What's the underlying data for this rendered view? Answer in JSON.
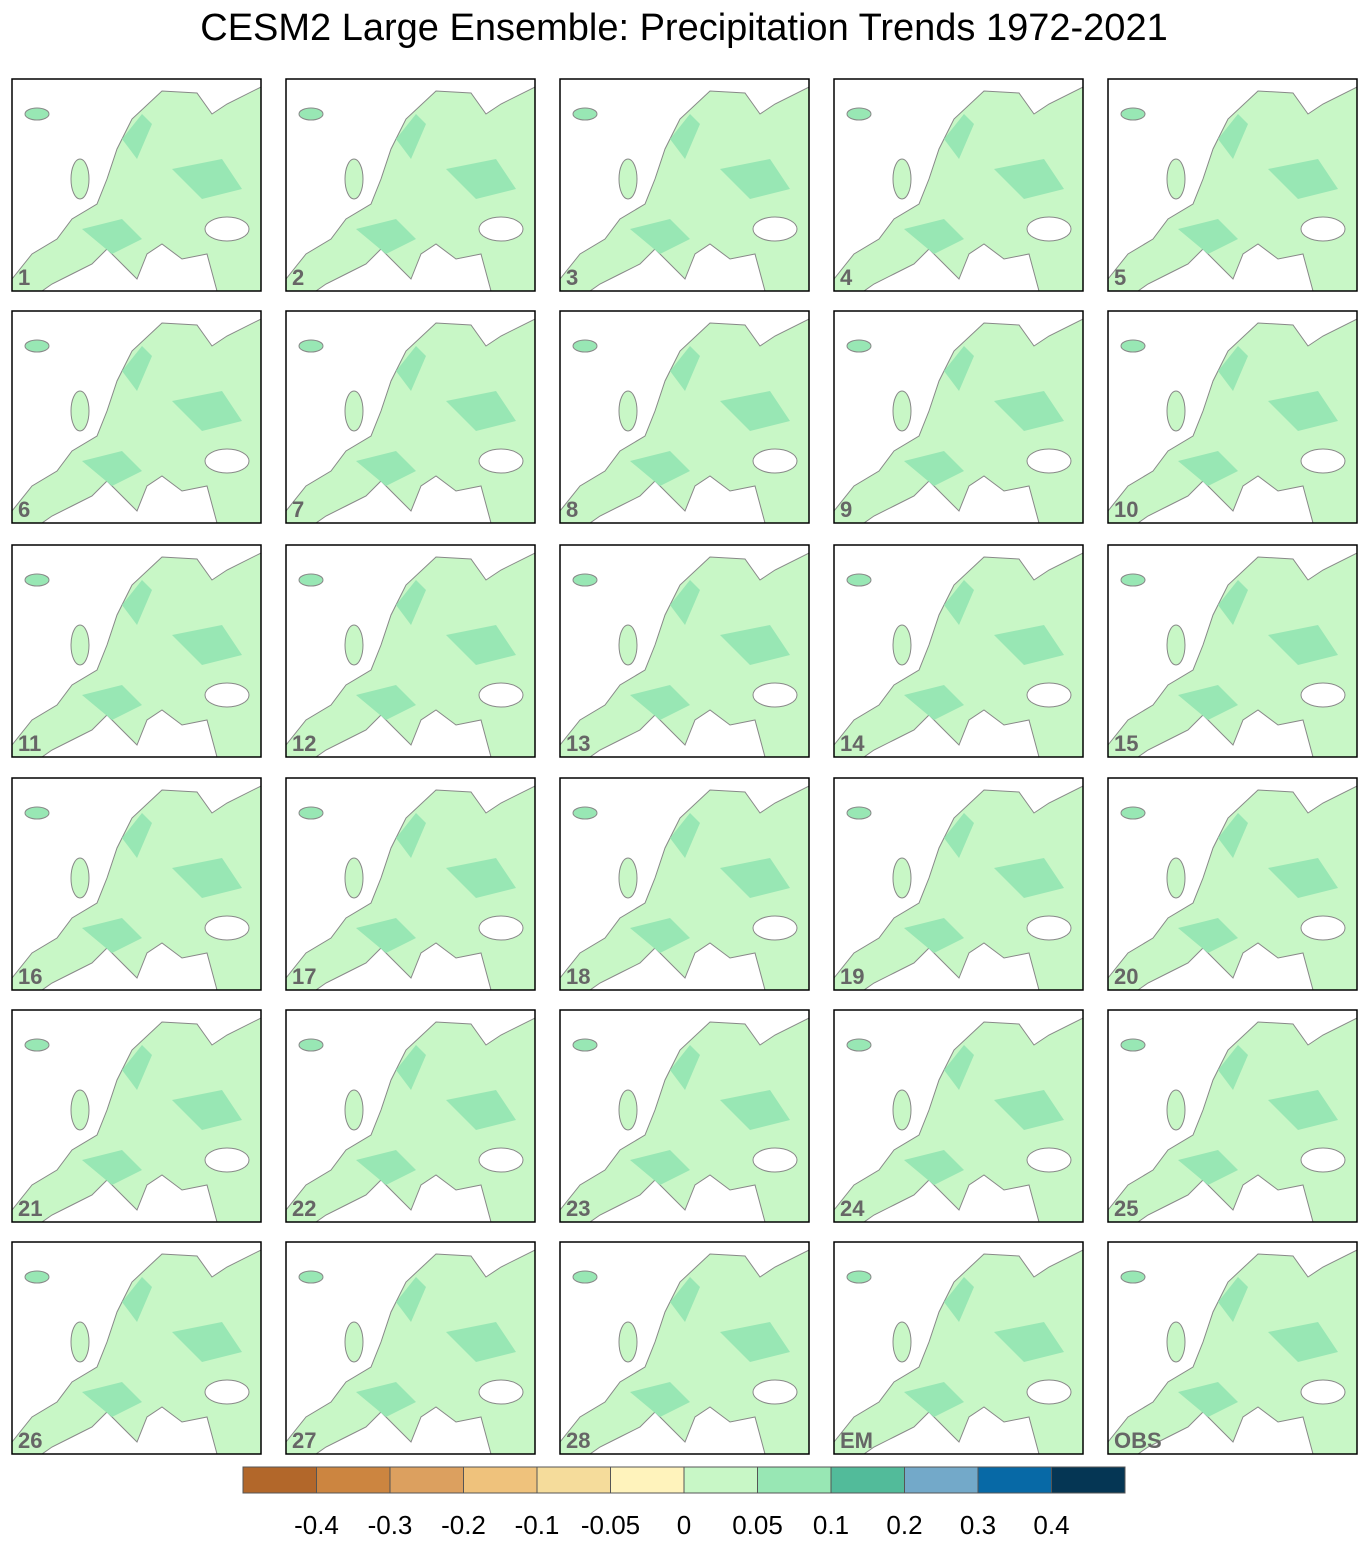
{
  "title": "CESM2 Large Ensemble: Precipitation Trends 1972-2021",
  "panels": [
    "1",
    "2",
    "3",
    "4",
    "5",
    "6",
    "7",
    "8",
    "9",
    "10",
    "11",
    "12",
    "13",
    "14",
    "15",
    "16",
    "17",
    "18",
    "19",
    "20",
    "21",
    "22",
    "23",
    "24",
    "25",
    "26",
    "27",
    "28",
    "EM",
    "OBS"
  ],
  "colorbar": {
    "colors": [
      "#b2672a",
      "#cc8540",
      "#dca05f",
      "#efc27c",
      "#f5dc9b",
      "#fff3bc",
      "#c8f7c6",
      "#98e7b4",
      "#52bb9a",
      "#73a9c9",
      "#0769a6",
      "#053654"
    ],
    "ticks": [
      -0.4,
      -0.3,
      -0.2,
      -0.1,
      -0.05,
      0,
      0.05,
      0.1,
      0.2,
      0.3,
      0.4
    ]
  }
}
